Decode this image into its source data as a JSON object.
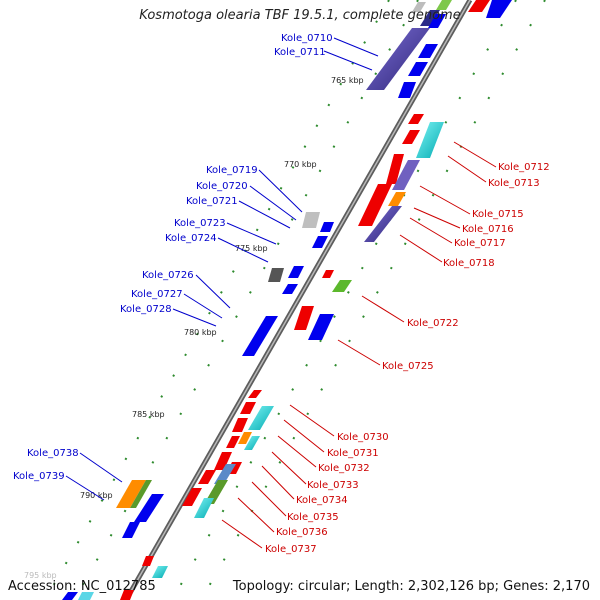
{
  "title": "Kosmotoga olearia TBF 19.5.1, complete genome",
  "footer": {
    "accession": "Accession: NC_012785",
    "summary": "Topology: circular; Length: 2,302,126 bp; Genes: 2,170"
  },
  "scale_ticks": [
    "765 kbp",
    "770 kbp",
    "775 kbp",
    "780 kbp",
    "785 kbp",
    "790 kbp",
    "795 kbp"
  ],
  "genes_left": [
    "Kole_0710",
    "Kole_0711",
    "Kole_0719",
    "Kole_0720",
    "Kole_0721",
    "Kole_0723",
    "Kole_0724",
    "Kole_0726",
    "Kole_0727",
    "Kole_0728",
    "Kole_0738",
    "Kole_0739"
  ],
  "genes_right": [
    "Kole_0712",
    "Kole_0713",
    "Kole_0715",
    "Kole_0716",
    "Kole_0717",
    "Kole_0718",
    "Kole_0722",
    "Kole_0725",
    "Kole_0730",
    "Kole_0731",
    "Kole_0732",
    "Kole_0733",
    "Kole_0734",
    "Kole_0735",
    "Kole_0736",
    "Kole_0737"
  ],
  "colors": {
    "forward_label": "#0000cc",
    "reverse_label": "#cc0000",
    "backbone": "#777777",
    "tick": "#2e8b2e"
  }
}
